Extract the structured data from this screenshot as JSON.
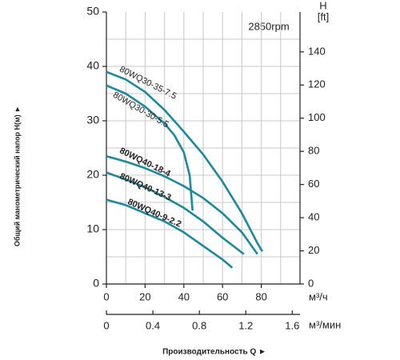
{
  "chart_data": {
    "type": "line",
    "ylabel": "Общий манометрический напор H(м) ►",
    "xlabel": "Производительность Q ►",
    "y2label": "H",
    "y2unit": "[ft]",
    "xunit": "м³/ч",
    "x2unit": "м³/мин",
    "annotation": "2850rpm",
    "xlim": [
      0,
      100
    ],
    "xticks": [
      0,
      20,
      40,
      60,
      80
    ],
    "x2lim": [
      0,
      1.6667
    ],
    "x2ticks": [
      0,
      0.4,
      0.8,
      1.2,
      1.6
    ],
    "ylim": [
      0,
      50
    ],
    "yticks": [
      0,
      10,
      20,
      30,
      40,
      50
    ],
    "y2lim": [
      0,
      164.04
    ],
    "y2ticks": [
      0,
      20,
      40,
      60,
      80,
      100,
      120,
      140
    ],
    "x_minor_ticks": [
      10,
      20,
      30,
      40,
      50,
      60,
      70,
      80,
      90
    ],
    "y_minor_ticks": [
      5,
      10,
      15,
      20,
      25,
      30,
      35,
      40,
      45
    ],
    "grid": true,
    "series": [
      {
        "name": "80WQ30-35-7.5",
        "color": "#1b8a9b",
        "x": [
          0,
          10,
          20,
          30,
          40,
          50,
          60,
          70,
          78,
          80.5
        ],
        "values": [
          39,
          37.6,
          35.3,
          32,
          28,
          23.8,
          18.8,
          13,
          7.5,
          6
        ]
      },
      {
        "name": "80WQ30-30-5.5",
        "color": "#1b8a9b",
        "x": [
          0,
          10,
          20,
          30,
          35,
          40,
          43,
          44.5
        ],
        "values": [
          36.5,
          35,
          32.6,
          29.5,
          27.4,
          24.2,
          20,
          13.5
        ]
      },
      {
        "name": "80WQ40-18-4",
        "color": "#1b8a9b",
        "x": [
          0,
          10,
          20,
          30,
          40,
          50,
          60,
          70,
          78
        ],
        "values": [
          23.5,
          22.5,
          21.3,
          19.8,
          18,
          15.8,
          13,
          9.5,
          5.5
        ]
      },
      {
        "name": "80WQ40-13-3",
        "color": "#1b8a9b",
        "x": [
          0,
          10,
          20,
          30,
          40,
          50,
          60,
          71
        ],
        "values": [
          20.5,
          19.2,
          17.8,
          16,
          14,
          11.5,
          8.5,
          5.5
        ]
      },
      {
        "name": "80WQ40-9-2.2",
        "color": "#1b8a9b",
        "x": [
          0,
          10,
          20,
          30,
          40,
          50,
          60,
          65
        ],
        "values": [
          15.5,
          14.5,
          13,
          11.5,
          9.5,
          7,
          4.5,
          3
        ]
      }
    ]
  }
}
